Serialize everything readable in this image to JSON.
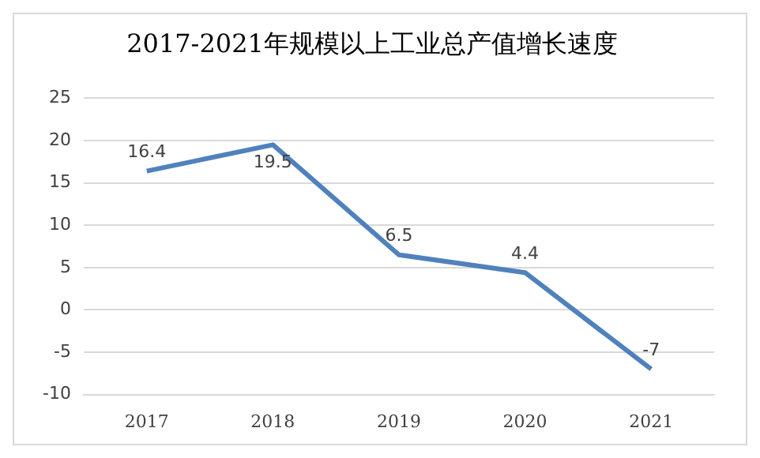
{
  "chart_data": {
    "type": "line",
    "title": "2017-2021年规模以上工业总产值增长速度",
    "categories": [
      "2017",
      "2018",
      "2019",
      "2020",
      "2021"
    ],
    "series": [
      {
        "color": "#4f81bd",
        "values": [
          16.4,
          19.5,
          6.5,
          4.4,
          -7
        ]
      }
    ],
    "ylim": [
      -10,
      25
    ],
    "yticks": [
      -10,
      -5,
      0,
      5,
      10,
      15,
      20,
      25
    ],
    "grid": "y",
    "data_labels": true,
    "legend": false,
    "marker": "none",
    "line_style": "solid"
  }
}
